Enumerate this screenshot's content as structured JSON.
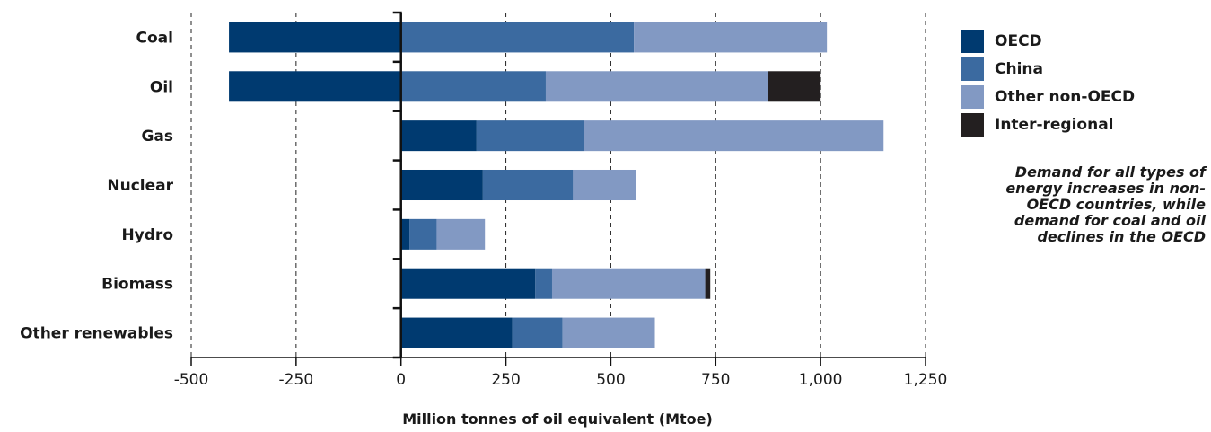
{
  "chart_data": {
    "type": "bar",
    "orientation": "horizontal",
    "stacked": true,
    "categories": [
      "Coal",
      "Oil",
      "Gas",
      "Nuclear",
      "Hydro",
      "Biomass",
      "Other renewables"
    ],
    "series": [
      {
        "name": "OECD",
        "color": "#003a70",
        "values": [
          -410,
          -410,
          180,
          195,
          20,
          320,
          265
        ]
      },
      {
        "name": "China",
        "color": "#3b6aa0",
        "values": [
          555,
          345,
          255,
          215,
          65,
          40,
          120
        ]
      },
      {
        "name": "Other non-OECD",
        "color": "#8299c3",
        "values": [
          460,
          530,
          715,
          150,
          115,
          365,
          220
        ]
      },
      {
        "name": "Inter-regional",
        "color": "#231f20",
        "values": [
          0,
          125,
          0,
          0,
          0,
          12,
          0
        ]
      }
    ],
    "xlabel": "Million tonnes of oil equivalent (Mtoe)",
    "ylabel": "",
    "xlim": [
      -500,
      1250
    ],
    "x_ticks": [
      -500,
      -250,
      0,
      250,
      500,
      750,
      1000,
      1250
    ],
    "x_tick_labels": [
      "-500",
      "-250",
      "0",
      "250",
      "500",
      "750",
      "1,000",
      "1,250"
    ],
    "grid": "vertical dashed",
    "legend_position": "right"
  },
  "annotation": {
    "lines": [
      "Demand for all types of",
      "energy increases in non-",
      "OECD countries, while",
      "demand for coal and oil",
      "declines in the OECD"
    ]
  }
}
